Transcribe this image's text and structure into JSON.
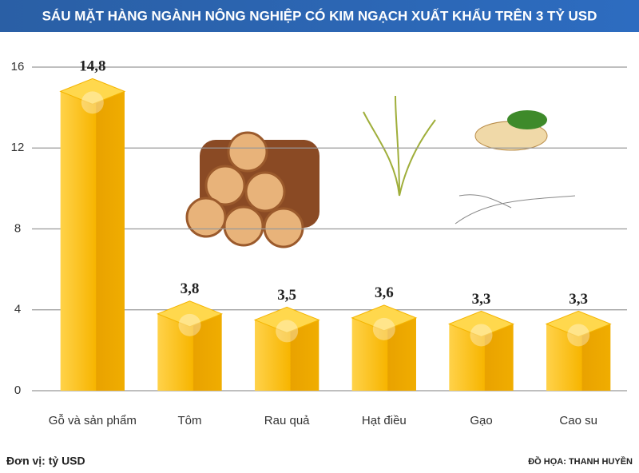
{
  "chart_data": {
    "type": "bar",
    "title": "SÁU MẶT HÀNG NGÀNH NÔNG NGHIỆP CÓ KIM NGẠCH XUẤT KHẨU TRÊN 3 TỶ USD",
    "categories": [
      "Gỗ và sản phẩm",
      "Tôm",
      "Rau quả",
      "Hạt điều",
      "Gạo",
      "Cao su"
    ],
    "values": [
      14.8,
      3.8,
      3.5,
      3.6,
      3.3,
      3.3
    ],
    "value_labels": [
      "14,8",
      "3,8",
      "3,5",
      "3,6",
      "3,3",
      "3,3"
    ],
    "color": "#f7b500",
    "ylim": [
      0,
      16
    ],
    "yticks": [
      0,
      4,
      8,
      12,
      16
    ],
    "grid": true,
    "unit_note": "Đơn vị: tỷ USD",
    "credit": "ĐỒ HỌA: THANH HUYỀN"
  }
}
